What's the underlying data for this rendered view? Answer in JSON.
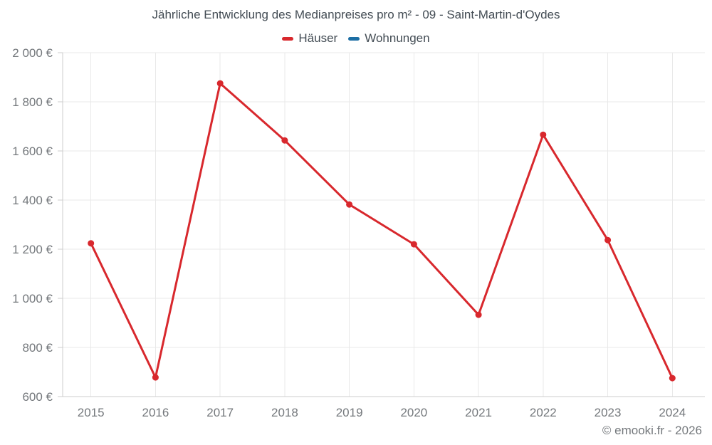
{
  "chart_data": {
    "type": "line",
    "title": "Jährliche Entwicklung des Medianpreises pro m² - 09 - Saint-Martin-d'Oydes",
    "categories": [
      "2015",
      "2016",
      "2017",
      "2018",
      "2019",
      "2020",
      "2021",
      "2022",
      "2023",
      "2024"
    ],
    "series": [
      {
        "name": "Häuser",
        "color": "#d8282d",
        "values": [
          1224,
          678,
          1875,
          1643,
          1382,
          1220,
          933,
          1666,
          1237,
          675
        ]
      },
      {
        "name": "Wohnungen",
        "color": "#1c6ea4",
        "values": []
      }
    ],
    "xlabel": "",
    "ylabel": "",
    "ylim": [
      600,
      2000
    ],
    "y_ticks": [
      {
        "value": 600,
        "label": "600 €"
      },
      {
        "value": 800,
        "label": "800 €"
      },
      {
        "value": 1000,
        "label": "1 000 €"
      },
      {
        "value": 1200,
        "label": "1 200 €"
      },
      {
        "value": 1400,
        "label": "1 400 €"
      },
      {
        "value": 1600,
        "label": "1 600 €"
      },
      {
        "value": 1800,
        "label": "1 800 €"
      },
      {
        "value": 2000,
        "label": "2 000 €"
      }
    ],
    "grid": true,
    "legend_position": "top"
  },
  "footer": {
    "text": "© emooki.fr - 2026"
  },
  "colors": {
    "background": "#ffffff",
    "grid": "#e9e9e9",
    "axis": "#cccccc",
    "tick_label": "#74787c",
    "title_text": "#434c54",
    "hauser": "#d8282d",
    "wohnungen": "#1c6ea4"
  }
}
